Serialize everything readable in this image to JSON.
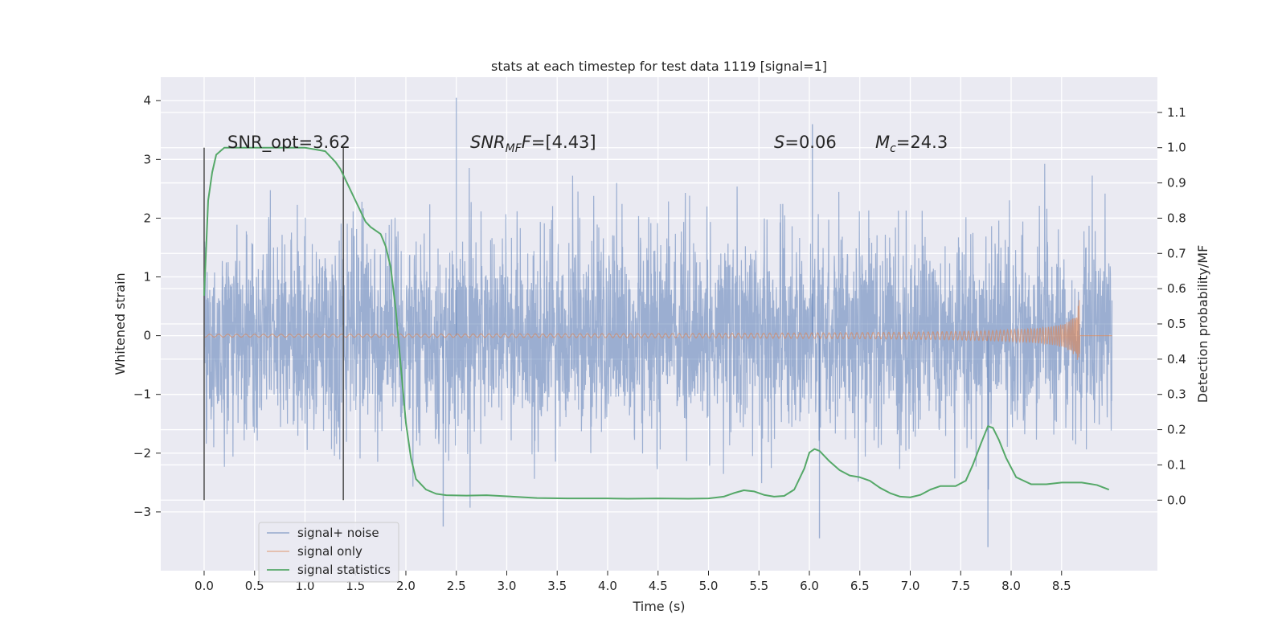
{
  "chart_data": {
    "type": "line",
    "title": "stats at each timestep for test data 1119 [signal=1]",
    "xlabel": "Time (s)",
    "ylabel": "Whitened strain",
    "ylabel_right": "Detection probability/MF",
    "xlim": [
      -0.43,
      9.45
    ],
    "ylim": [
      -4.0,
      4.4
    ],
    "ylim_right": [
      -0.2,
      1.2
    ],
    "x_ticks": [
      "0.0",
      "0.5",
      "1.0",
      "1.5",
      "2.0",
      "2.5",
      "3.0",
      "3.5",
      "4.0",
      "4.5",
      "5.0",
      "5.5",
      "6.0",
      "6.5",
      "7.0",
      "7.5",
      "8.0",
      "8.5"
    ],
    "x_tick_values": [
      0.0,
      0.5,
      1.0,
      1.5,
      2.0,
      2.5,
      3.0,
      3.5,
      4.0,
      4.5,
      5.0,
      5.5,
      6.0,
      6.5,
      7.0,
      7.5,
      8.0,
      8.5
    ],
    "y_ticks": [
      "4",
      "3",
      "2",
      "1",
      "0",
      "−1",
      "−2",
      "−3"
    ],
    "y_tick_values": [
      4,
      3,
      2,
      1,
      0,
      -1,
      -2,
      -3
    ],
    "y_right_ticks": [
      "1.1",
      "1.0",
      "0.9",
      "0.8",
      "0.7",
      "0.6",
      "0.5",
      "0.4",
      "0.3",
      "0.2",
      "0.1",
      "0.0"
    ],
    "y_right_tick_values": [
      1.1,
      1.0,
      0.9,
      0.8,
      0.7,
      0.6,
      0.5,
      0.4,
      0.3,
      0.2,
      0.1,
      0.0
    ],
    "vlines": [
      {
        "x": 0.0,
        "y0": -2.8,
        "y1": 3.2
      },
      {
        "x": 1.38,
        "y0": -2.8,
        "y1": 3.2
      }
    ],
    "annotations": {
      "snr_opt": "SNR_opt=3.62",
      "snr_mf_label": "SNR",
      "snr_mf_sub": "MF",
      "snr_mf_value": "=[4.43]",
      "s_label": "S",
      "s_value": "=0.06",
      "mc_label": "M",
      "mc_sub": "c",
      "mc_value": "=24.3"
    },
    "series": [
      {
        "name": "signal+ noise",
        "color": "#4c72b0",
        "axis": "left",
        "x_range": [
          0.0,
          9.0
        ],
        "typical_range": [
          -1.75,
          1.75
        ],
        "notable_peaks": [
          {
            "x": 2.5,
            "y": 4.05
          },
          {
            "x": 6.03,
            "y": 3.6
          },
          {
            "x": 7.77,
            "y": -3.6
          },
          {
            "x": 2.37,
            "y": -3.25
          },
          {
            "x": 6.1,
            "y": -3.45
          }
        ]
      },
      {
        "name": "signal only",
        "color": "#dd8452",
        "axis": "left",
        "x_range": [
          0.0,
          9.0
        ],
        "chirp_end": 8.68,
        "peak_amplitude": 0.7
      },
      {
        "name": "signal statistics",
        "color": "#55a868",
        "axis": "right",
        "x": [
          0.0,
          0.04,
          0.08,
          0.12,
          0.16,
          0.2,
          0.3,
          0.5,
          0.7,
          0.9,
          1.0,
          1.1,
          1.2,
          1.3,
          1.35,
          1.4,
          1.45,
          1.5,
          1.55,
          1.6,
          1.65,
          1.7,
          1.75,
          1.8,
          1.85,
          1.9,
          1.95,
          2.0,
          2.05,
          2.1,
          2.2,
          2.3,
          2.4,
          2.6,
          2.8,
          3.0,
          3.3,
          3.6,
          4.0,
          4.2,
          4.5,
          4.8,
          5.0,
          5.15,
          5.25,
          5.35,
          5.45,
          5.55,
          5.65,
          5.75,
          5.85,
          5.95,
          6.0,
          6.05,
          6.1,
          6.2,
          6.3,
          6.4,
          6.5,
          6.6,
          6.7,
          6.8,
          6.9,
          7.0,
          7.1,
          7.2,
          7.3,
          7.45,
          7.55,
          7.62,
          7.7,
          7.77,
          7.82,
          7.88,
          7.95,
          8.05,
          8.2,
          8.35,
          8.5,
          8.7,
          8.85,
          8.97
        ],
        "values": [
          0.58,
          0.85,
          0.93,
          0.98,
          0.99,
          1.0,
          1.0,
          1.0,
          1.0,
          1.0,
          1.0,
          0.995,
          0.99,
          0.96,
          0.94,
          0.91,
          0.88,
          0.85,
          0.82,
          0.79,
          0.775,
          0.765,
          0.755,
          0.72,
          0.66,
          0.54,
          0.38,
          0.22,
          0.12,
          0.06,
          0.03,
          0.018,
          0.014,
          0.013,
          0.014,
          0.011,
          0.006,
          0.005,
          0.005,
          0.004,
          0.005,
          0.004,
          0.005,
          0.01,
          0.02,
          0.028,
          0.025,
          0.015,
          0.01,
          0.012,
          0.03,
          0.09,
          0.135,
          0.145,
          0.14,
          0.11,
          0.085,
          0.07,
          0.065,
          0.055,
          0.035,
          0.02,
          0.01,
          0.008,
          0.015,
          0.03,
          0.04,
          0.04,
          0.055,
          0.1,
          0.16,
          0.21,
          0.205,
          0.17,
          0.12,
          0.065,
          0.045,
          0.045,
          0.05,
          0.05,
          0.043,
          0.03
        ]
      }
    ],
    "legend": [
      "signal+ noise",
      "signal only",
      "signal statistics"
    ],
    "legend_position": "lower-left",
    "grid": true
  }
}
